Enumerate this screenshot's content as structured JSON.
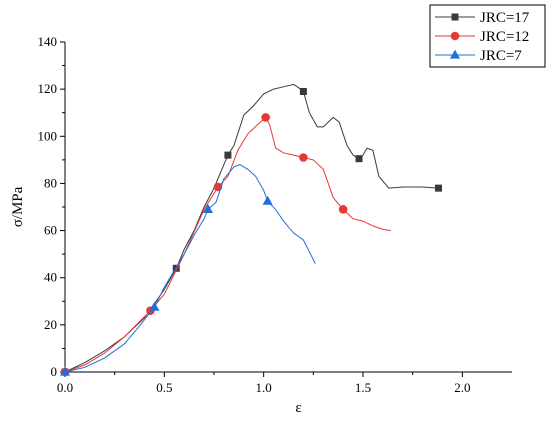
{
  "chart_data": {
    "type": "line",
    "title": "",
    "xlabel": "ε",
    "ylabel": "σ/MPa",
    "xlim": [
      0,
      2.25
    ],
    "ylim": [
      0,
      140
    ],
    "xticks": [
      "0.0",
      "0.5",
      "1.0",
      "1.5",
      "2.0"
    ],
    "yticks": [
      "0",
      "20",
      "40",
      "60",
      "80",
      "100",
      "120",
      "140"
    ],
    "grid": false,
    "legend_position": "top-right",
    "series": [
      {
        "name": "JRC=17",
        "color": "#3a3a3a",
        "marker": "square",
        "x": [
          0,
          0.1,
          0.2,
          0.3,
          0.4,
          0.5,
          0.56,
          0.6,
          0.65,
          0.7,
          0.75,
          0.82,
          0.85,
          0.9,
          0.95,
          1.0,
          1.05,
          1.1,
          1.15,
          1.17,
          1.2,
          1.23,
          1.27,
          1.3,
          1.35,
          1.38,
          1.42,
          1.45,
          1.48,
          1.5,
          1.52,
          1.55,
          1.58,
          1.63,
          1.7,
          1.8,
          1.88
        ],
        "y": [
          0,
          4,
          9,
          15,
          23,
          35,
          44,
          52,
          60,
          70,
          78,
          92,
          96,
          109,
          113,
          118,
          120,
          121,
          122,
          121,
          119,
          110,
          104,
          104,
          108,
          106,
          96,
          92,
          90.5,
          92,
          95,
          94,
          83,
          78,
          78.5,
          78.5,
          78
        ],
        "marker_x": [
          0,
          0.56,
          0.82,
          1.2,
          1.48,
          1.88
        ],
        "marker_y": [
          0,
          44,
          92,
          119,
          90.5,
          78
        ]
      },
      {
        "name": "JRC=12",
        "color": "#e53935",
        "marker": "circle",
        "x": [
          0,
          0.1,
          0.2,
          0.3,
          0.43,
          0.5,
          0.6,
          0.7,
          0.77,
          0.82,
          0.87,
          0.92,
          0.97,
          1.01,
          1.03,
          1.06,
          1.1,
          1.15,
          1.2,
          1.25,
          1.3,
          1.35,
          1.4,
          1.45,
          1.5,
          1.55,
          1.6,
          1.64
        ],
        "y": [
          0,
          3,
          8,
          15,
          26,
          33,
          50,
          69,
          78.5,
          83,
          94,
          101,
          105,
          108,
          105,
          95,
          93,
          92,
          91,
          90,
          86,
          74,
          69,
          65,
          64,
          62,
          60.5,
          60
        ],
        "marker_x": [
          0,
          0.43,
          0.77,
          1.01,
          1.2,
          1.4
        ],
        "marker_y": [
          0,
          26,
          78.5,
          108,
          91,
          69
        ]
      },
      {
        "name": "JRC=7",
        "color": "#1e6fd9",
        "marker": "triangle",
        "x": [
          0,
          0.1,
          0.2,
          0.3,
          0.37,
          0.45,
          0.5,
          0.6,
          0.65,
          0.7,
          0.72,
          0.76,
          0.8,
          0.85,
          0.88,
          0.92,
          0.96,
          1.0,
          1.02,
          1.06,
          1.1,
          1.15,
          1.2,
          1.23,
          1.26
        ],
        "y": [
          0,
          2,
          6,
          12,
          19,
          27.5,
          36,
          50,
          58,
          65,
          69,
          72,
          82,
          87,
          88,
          86,
          83,
          77,
          72.5,
          69,
          64,
          59,
          56,
          51,
          46
        ],
        "marker_x": [
          0,
          0.45,
          0.72,
          1.02
        ],
        "marker_y": [
          0,
          27.5,
          69,
          72.5
        ]
      }
    ]
  }
}
